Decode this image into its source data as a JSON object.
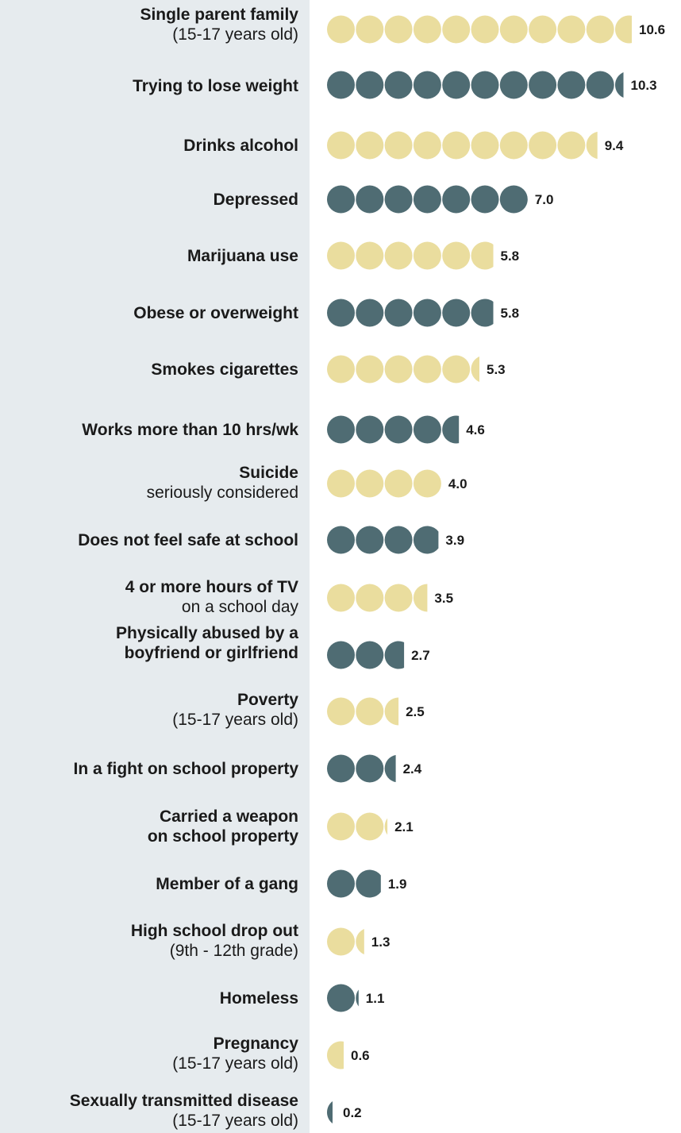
{
  "colors": {
    "panel_bg": "#e6ebee",
    "dot_light": "#eadd9e",
    "dot_dark": "#4f6c73"
  },
  "chart_data": {
    "type": "bar",
    "title": "",
    "xlabel": "",
    "ylabel": "",
    "value_unit_per_dot": 1,
    "xlim": [
      0,
      11
    ],
    "categories": [
      {
        "label": "Single parent family",
        "sub": "(15-17 years old)"
      },
      {
        "label": "Trying to lose weight",
        "sub": ""
      },
      {
        "label": "Drinks alcohol",
        "sub": ""
      },
      {
        "label": "Depressed",
        "sub": ""
      },
      {
        "label": "Marijuana use",
        "sub": ""
      },
      {
        "label": "Obese or overweight",
        "sub": ""
      },
      {
        "label": "Smokes cigarettes",
        "sub": ""
      },
      {
        "label": "Works more than 10 hrs/wk",
        "sub": ""
      },
      {
        "label": "Suicide",
        "sub": "seriously considered"
      },
      {
        "label": "Does not feel safe at school",
        "sub": ""
      },
      {
        "label": "4 or more hours of TV",
        "sub": "on a school day"
      },
      {
        "label": "Physically abused by a boyfriend or girlfriend",
        "sub": ""
      },
      {
        "label": "Poverty",
        "sub": "(15-17 years old)"
      },
      {
        "label": "In a fight on school property",
        "sub": ""
      },
      {
        "label": "Carried a weapon on school property",
        "sub": ""
      },
      {
        "label": "Member of a gang",
        "sub": ""
      },
      {
        "label": "High school drop out",
        "sub": "(9th - 12th grade)"
      },
      {
        "label": "Homeless",
        "sub": ""
      },
      {
        "label": "Pregnancy",
        "sub": "(15-17 years old)"
      },
      {
        "label": "Sexually transmitted disease",
        "sub": "(15-17 years old)"
      }
    ],
    "values": [
      10.6,
      10.3,
      9.4,
      7.0,
      5.8,
      5.8,
      5.3,
      4.6,
      4.0,
      3.9,
      3.5,
      2.7,
      2.5,
      2.4,
      2.1,
      1.9,
      1.3,
      1.1,
      0.6,
      0.2
    ],
    "value_labels": [
      "10.6",
      "10.3",
      "9.4",
      "7.0",
      "5.8",
      "5.8",
      "5.3",
      "4.6",
      "4.0",
      "3.9",
      "3.5",
      "2.7",
      "2.5",
      "2.4",
      "2.1",
      "1.9",
      "1.3",
      "1.1",
      "0.6",
      "0.2"
    ],
    "dot_colors": [
      "light",
      "dark",
      "light",
      "dark",
      "light",
      "dark",
      "light",
      "dark",
      "light",
      "dark",
      "light",
      "dark",
      "light",
      "dark",
      "light",
      "dark",
      "light",
      "dark",
      "light",
      "dark"
    ]
  }
}
